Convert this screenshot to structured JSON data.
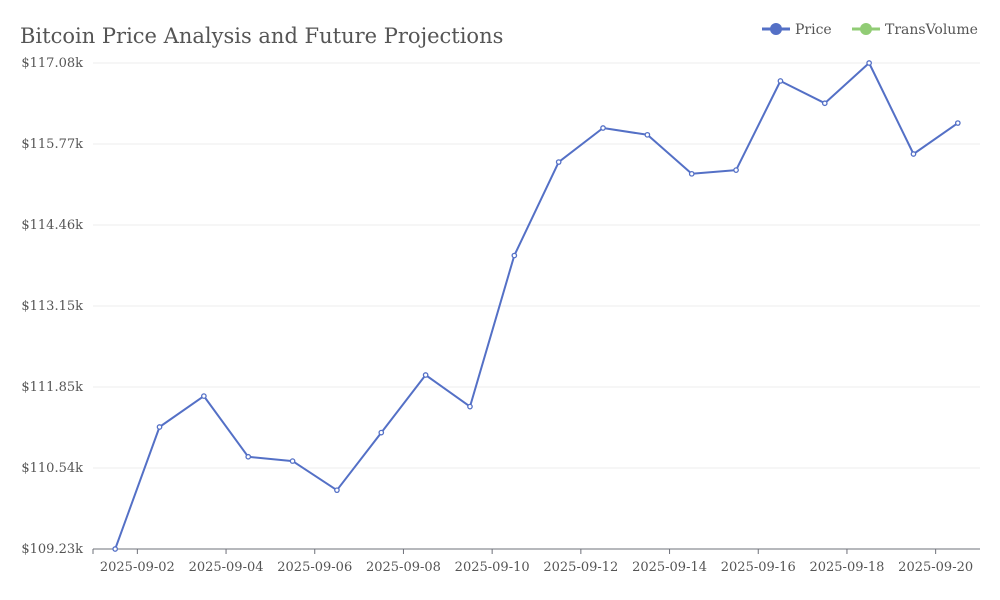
{
  "chart_data": {
    "type": "line",
    "title": "Bitcoin Price Analysis and Future Projections",
    "legend": {
      "placement": "top-right",
      "entries": [
        {
          "name": "Price",
          "color": "#5470c6"
        },
        {
          "name": "TransVolume",
          "color": "#91cc75"
        }
      ]
    },
    "x_ticks": [
      "2025-09-02",
      "2025-09-04",
      "2025-09-06",
      "2025-09-08",
      "2025-09-10",
      "2025-09-12",
      "2025-09-14",
      "2025-09-16",
      "2025-09-18",
      "2025-09-20"
    ],
    "y_ticks": [
      "$109.23k",
      "$110.54k",
      "$111.85k",
      "$113.15k",
      "$114.46k",
      "$115.77k",
      "$117.08k"
    ],
    "ylim": [
      109.23,
      117.08
    ],
    "grid": {
      "horizontal": true,
      "vertical": false
    },
    "series": [
      {
        "name": "Price",
        "color": "#5470c6",
        "points": [
          {
            "x": "2025-09-01",
            "y": 109.23
          },
          {
            "x": "2025-09-02",
            "y": 111.2
          },
          {
            "x": "2025-09-03",
            "y": 111.7
          },
          {
            "x": "2025-09-04",
            "y": 110.72
          },
          {
            "x": "2025-09-05",
            "y": 110.65
          },
          {
            "x": "2025-09-06",
            "y": 110.18
          },
          {
            "x": "2025-09-07",
            "y": 111.11
          },
          {
            "x": "2025-09-08",
            "y": 112.04
          },
          {
            "x": "2025-09-09",
            "y": 111.53
          },
          {
            "x": "2025-09-10",
            "y": 113.97
          },
          {
            "x": "2025-09-11",
            "y": 115.48
          },
          {
            "x": "2025-09-12",
            "y": 116.03
          },
          {
            "x": "2025-09-13",
            "y": 115.92
          },
          {
            "x": "2025-09-14",
            "y": 115.29
          },
          {
            "x": "2025-09-15",
            "y": 115.35
          },
          {
            "x": "2025-09-16",
            "y": 116.79
          },
          {
            "x": "2025-09-17",
            "y": 116.43
          },
          {
            "x": "2025-09-18",
            "y": 117.08
          },
          {
            "x": "2025-09-19",
            "y": 115.61
          },
          {
            "x": "2025-09-20",
            "y": 116.11
          }
        ]
      }
    ]
  }
}
